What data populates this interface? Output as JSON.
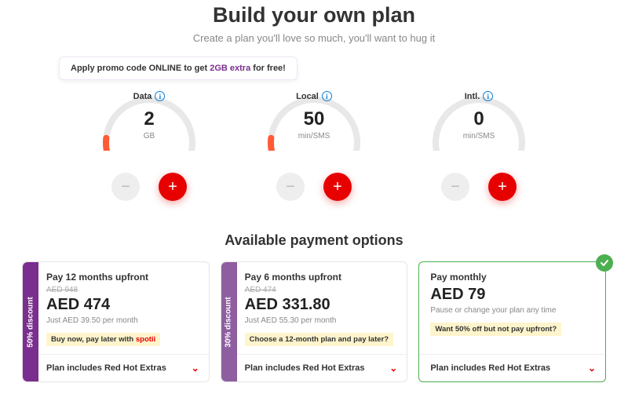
{
  "header": {
    "title": "Build your own plan",
    "subtitle": "Create a plan you'll love so much, you'll want to hug it"
  },
  "promo": {
    "prefix": "Apply promo code ONLINE to get ",
    "highlight": "2GB extra",
    "suffix": " for free!"
  },
  "gauges": [
    {
      "label": "Data",
      "value": "2",
      "unit": "GB",
      "fillFraction": 0.12
    },
    {
      "label": "Local",
      "value": "50",
      "unit": "min/SMS",
      "fillFraction": 0.12
    },
    {
      "label": "Intl.",
      "value": "0",
      "unit": "min/SMS",
      "fillFraction": 0.02
    }
  ],
  "gaugeStyle": {
    "trackColor": "#e8e8e8",
    "fillColor": "#ff5a36",
    "strokeWidth": 8
  },
  "controls": {
    "minus": "−",
    "plus": "+"
  },
  "paymentSectionTitle": "Available payment options",
  "cards": [
    {
      "discountBadge": "50% discount",
      "title": "Pay 12 months upfront",
      "oldPrice": "AED 948",
      "price": "AED 474",
      "perMonth": "Just AED 39.50 per month",
      "tagPrefix": "Buy now, pay later with ",
      "tagBrand": "spotii",
      "footer": "Plan includes Red Hot Extras",
      "selected": false
    },
    {
      "discountBadge": "30% discount",
      "title": "Pay 6 months upfront",
      "oldPrice": "AED 474",
      "price": "AED 331.80",
      "perMonth": "Just AED 55.30 per month",
      "tagline": "Choose a 12-month plan and pay later?",
      "footer": "Plan includes Red Hot Extras",
      "selected": false
    },
    {
      "title": "Pay monthly",
      "price": "AED 79",
      "perMonth": "Pause or change your plan any time",
      "tagline": "Want 50% off but not pay upfront?",
      "footer": "Plan includes Red Hot Extras",
      "selected": true
    }
  ]
}
